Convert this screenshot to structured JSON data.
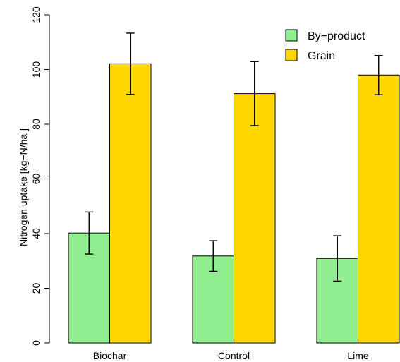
{
  "chart_data": {
    "type": "bar",
    "categories": [
      "Biochar",
      "Control",
      "Lime"
    ],
    "series": [
      {
        "name": "By−product",
        "color": "#90EE90",
        "values": [
          40.2,
          31.8,
          30.9
        ],
        "error_low": [
          32.5,
          26.2,
          22.6
        ],
        "error_high": [
          47.9,
          37.4,
          39.2
        ]
      },
      {
        "name": "Grain",
        "color": "#FFD700",
        "values": [
          102.1,
          91.2,
          98.0
        ],
        "error_low": [
          90.9,
          79.5,
          90.8
        ],
        "error_high": [
          113.3,
          102.9,
          105.1
        ]
      }
    ],
    "title": "",
    "xlabel": "",
    "ylabel": "Nitrogen uptake [kg−N/ha ]",
    "ylim": [
      0,
      120
    ],
    "yticks": [
      0,
      20,
      40,
      60,
      80,
      100,
      120
    ],
    "grid": false,
    "legend_position": "top-right"
  }
}
